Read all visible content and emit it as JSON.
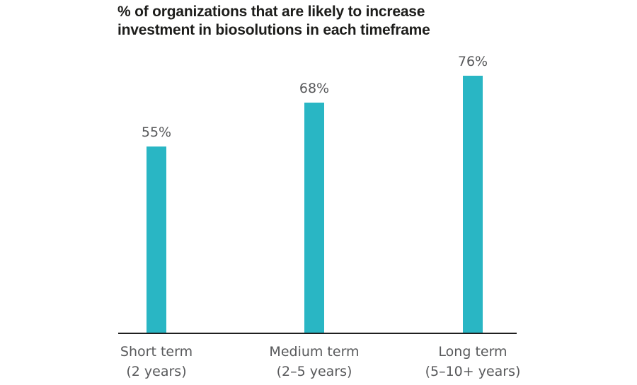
{
  "title": {
    "lines": [
      "% of organizations that are likely to increase",
      "investment in biosolutions in each timeframe"
    ]
  },
  "chart_data": {
    "type": "bar",
    "title": "% of organizations that are likely to increase investment in biosolutions in each timeframe",
    "categories": [
      "Short term (2 years)",
      "Medium term (2–5 years)",
      "Long term (5–10+ years)"
    ],
    "category_lines": [
      [
        "Short term",
        "(2 years)"
      ],
      [
        "Medium term",
        "(2–5 years)"
      ],
      [
        "Long term",
        "(5–10+ years)"
      ]
    ],
    "values": [
      55,
      68,
      76
    ],
    "data_labels": [
      "55%",
      "68%",
      "76%"
    ],
    "xlabel": "",
    "ylabel": "",
    "ylim": [
      0,
      80
    ],
    "grid": false,
    "legend": false,
    "bar_color": "#29b6c4"
  },
  "colors": {
    "bar": "#29b6c4",
    "title_text": "#1d1d1b",
    "label_text": "#58595b",
    "axis_line": "#1f1f1f",
    "background": "#ffffff"
  }
}
